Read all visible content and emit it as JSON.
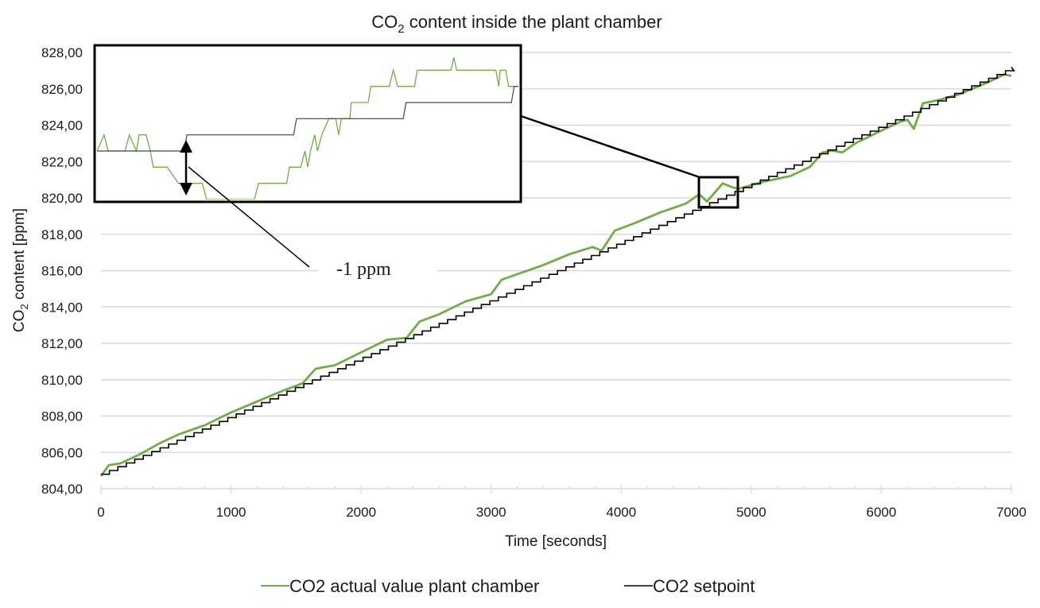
{
  "chart_data": {
    "type": "line",
    "title": "CO2 content inside the plant chamber",
    "title_parts": {
      "prefix": "CO",
      "subscript": "2",
      "suffix": " content inside the plant chamber"
    },
    "xlabel": "Time [seconds]",
    "ylabel": "CO2 content [ppm]",
    "ylabel_parts": {
      "prefix": "CO",
      "subscript": "2",
      "suffix": " content [ppm]"
    },
    "xlim": [
      0,
      7000
    ],
    "ylim": [
      804,
      828
    ],
    "x_ticks": [
      0,
      1000,
      2000,
      3000,
      4000,
      5000,
      6000,
      7000
    ],
    "x_tick_labels": [
      "0",
      "1000",
      "2000",
      "3000",
      "4000",
      "5000",
      "6000",
      "7000"
    ],
    "x_minor_tick_step": 200,
    "y_ticks": [
      804,
      806,
      808,
      810,
      812,
      814,
      816,
      818,
      820,
      822,
      824,
      826,
      828
    ],
    "y_tick_labels": [
      "804,00",
      "806,00",
      "808,00",
      "810,00",
      "812,00",
      "814,00",
      "816,00",
      "818,00",
      "820,00",
      "822,00",
      "824,00",
      "826,00",
      "828,00"
    ],
    "grid": "horizontal",
    "legend_position": "bottom",
    "series": [
      {
        "name": "CO2 actual value plant chamber",
        "color": "#70ad47",
        "x": [
          0,
          60,
          150,
          300,
          450,
          600,
          800,
          1000,
          1200,
          1400,
          1550,
          1650,
          1800,
          2000,
          2200,
          2350,
          2450,
          2600,
          2800,
          3000,
          3080,
          3200,
          3400,
          3600,
          3780,
          3850,
          3950,
          4100,
          4300,
          4500,
          4600,
          4660,
          4720,
          4780,
          4850,
          4900,
          4950,
          5100,
          5300,
          5450,
          5550,
          5620,
          5700,
          5800,
          6000,
          6150,
          6200,
          6250,
          6320,
          6450,
          6600,
          6800,
          6950,
          7000
        ],
        "values": [
          804.7,
          805.3,
          805.4,
          805.9,
          806.5,
          807.0,
          807.5,
          808.2,
          808.8,
          809.4,
          809.8,
          810.6,
          810.8,
          811.5,
          812.2,
          812.3,
          813.2,
          813.6,
          814.3,
          814.7,
          815.5,
          815.8,
          816.3,
          816.9,
          817.3,
          817.1,
          818.2,
          818.6,
          819.2,
          819.7,
          820.2,
          819.8,
          820.3,
          820.8,
          820.6,
          820.5,
          820.6,
          820.9,
          821.2,
          821.7,
          822.5,
          822.6,
          822.5,
          823.0,
          823.7,
          824.2,
          824.3,
          823.8,
          825.2,
          825.4,
          825.7,
          826.3,
          826.8,
          826.7
        ]
      },
      {
        "name": "CO2 setpoint",
        "color": "#000000",
        "x_start": 0,
        "x_end": 7000,
        "value_start": 804.8,
        "value_end": 827.2,
        "step_interval_seconds": 65
      }
    ],
    "inset": {
      "description": "Zoomed view of the region around t=4600-4900 s, y=819.5-821.2 ppm",
      "annotation": "-1 ppm",
      "annotation_meaning": "Difference between setpoint and actual value at the dip"
    }
  }
}
